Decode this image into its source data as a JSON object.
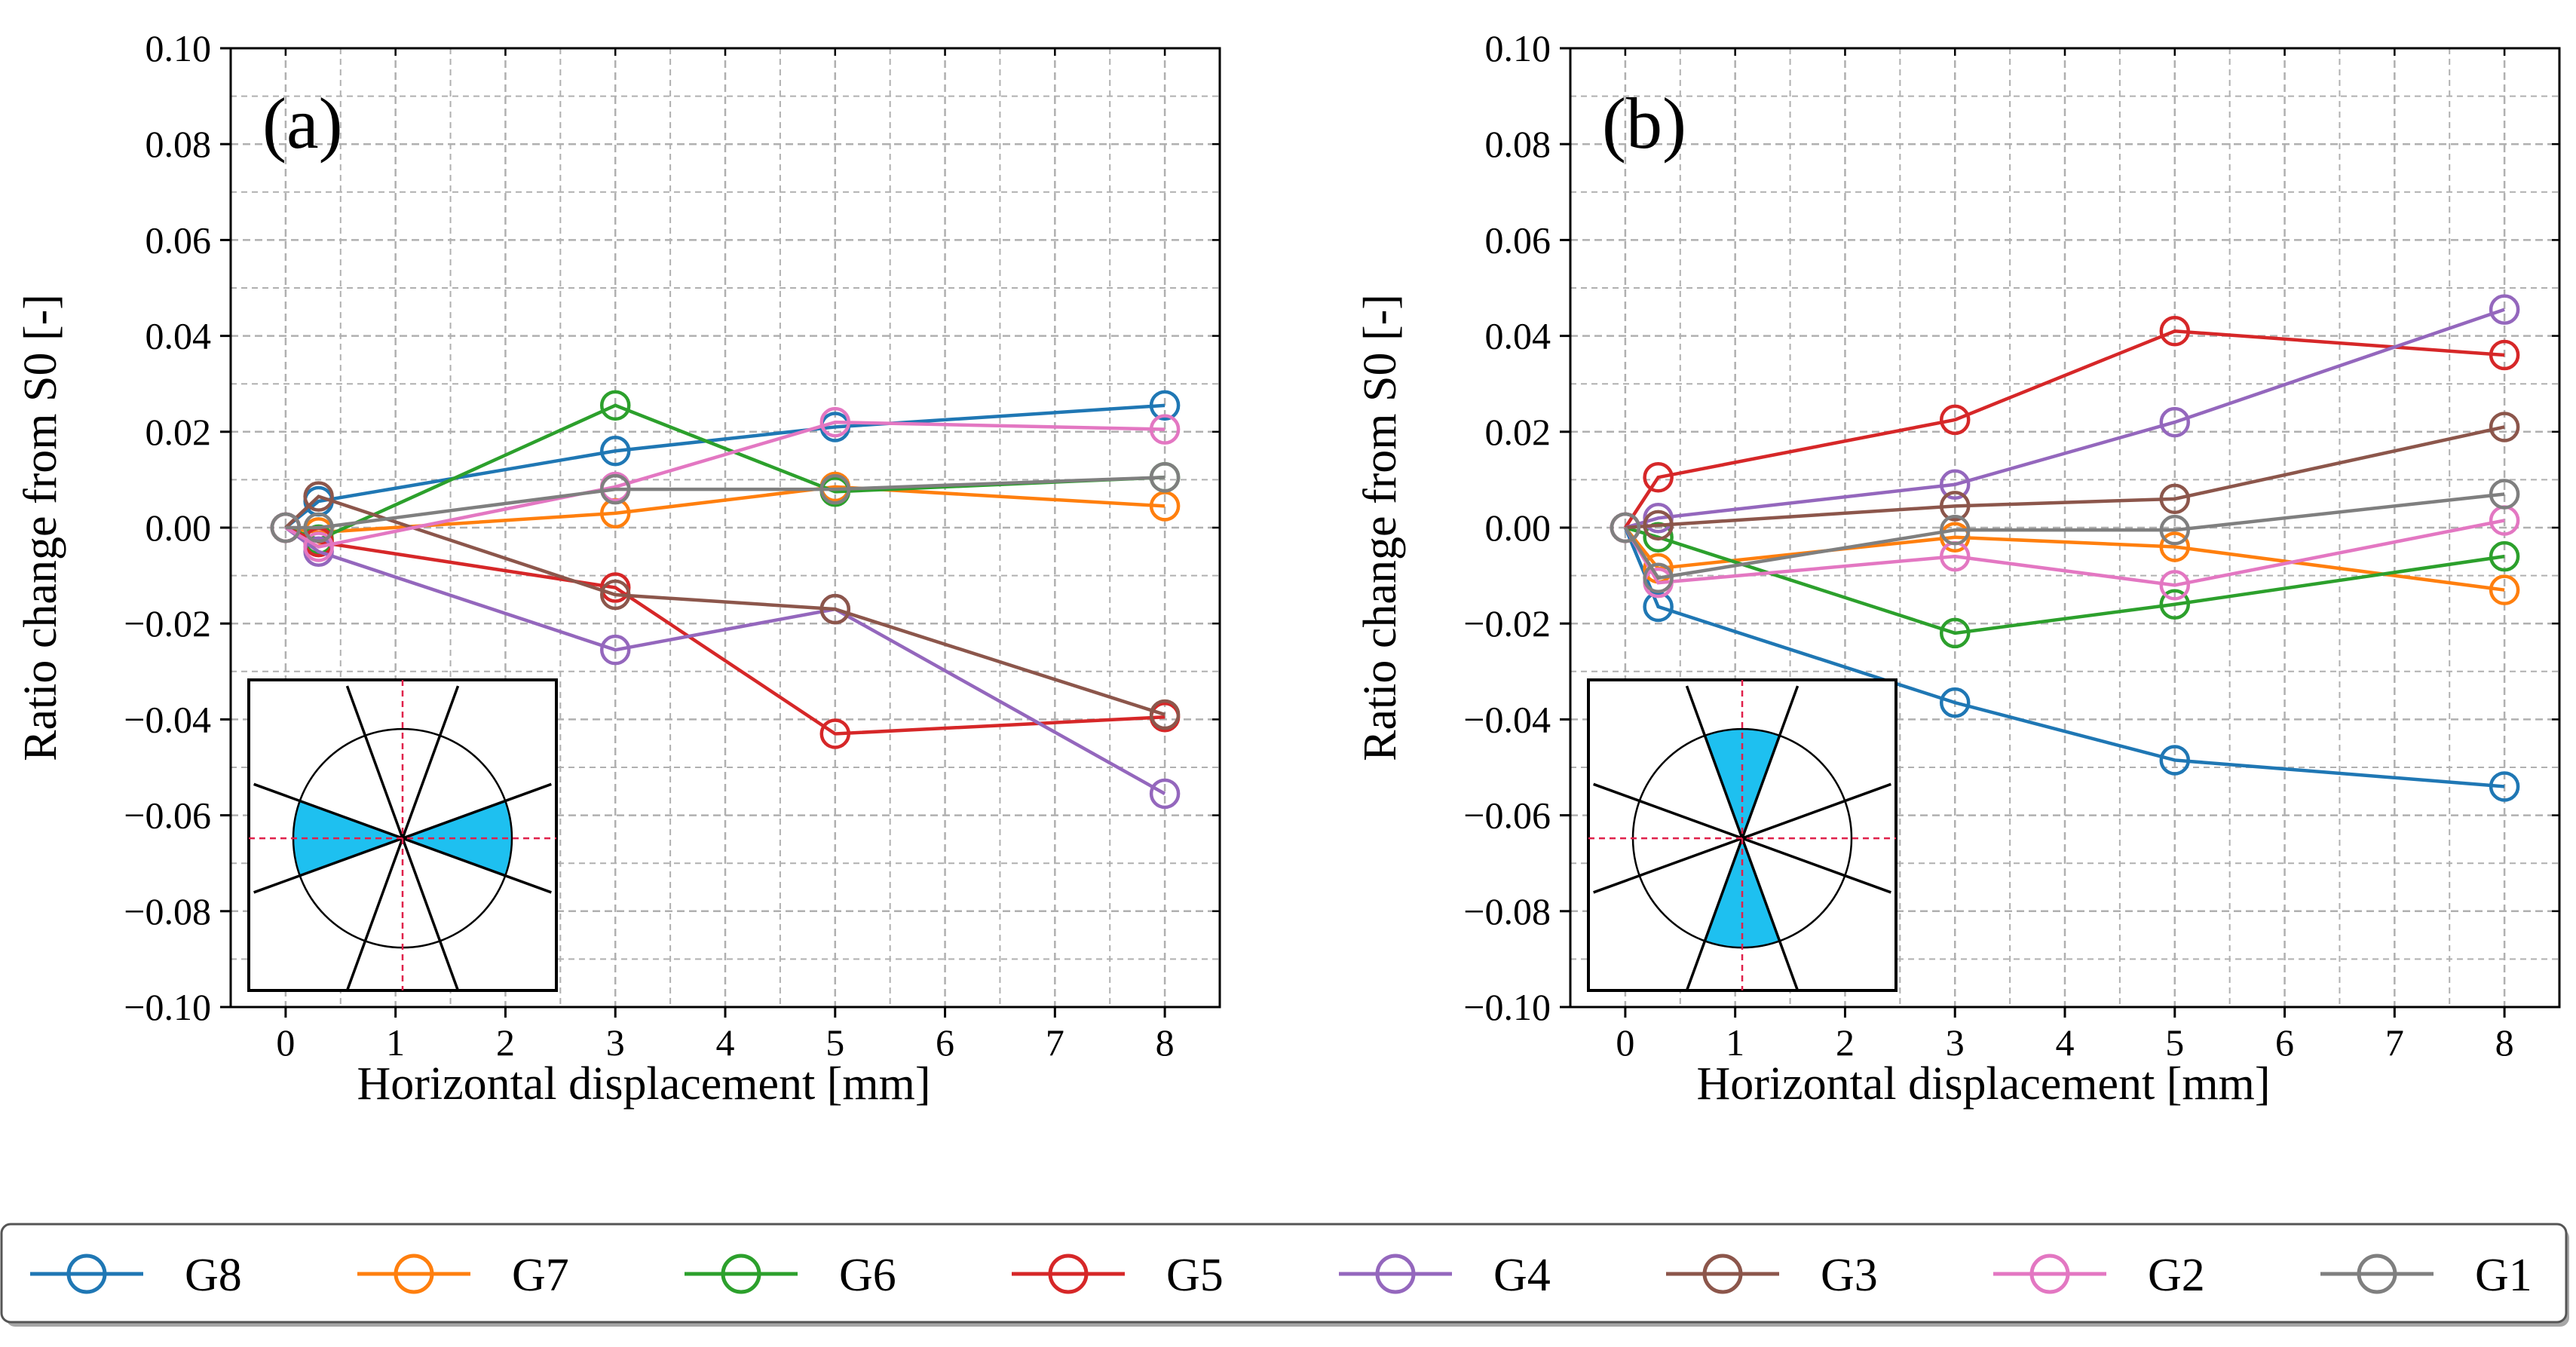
{
  "colors": {
    "G8": "#1f77b4",
    "G7": "#ff7f0e",
    "G6": "#2ca02c",
    "G5": "#d62728",
    "G4": "#9467bd",
    "G3": "#8c564b",
    "G2": "#e377c2",
    "G1": "#7f7f7f",
    "sector_fill": "#1ec0f0",
    "crosshair": "#e0204a",
    "grid": "#b0b0b0"
  },
  "legend": {
    "entries": [
      "G8",
      "G7",
      "G6",
      "G5",
      "G4",
      "G3",
      "G2",
      "G1"
    ]
  },
  "chart_data": [
    {
      "type": "line",
      "panel_label": "(a)",
      "xlabel": "Horizontal displacement [mm]",
      "ylabel": "Ratio change from S0 [-]",
      "xlim": [
        -0.5,
        8.5
      ],
      "ylim": [
        -0.1,
        0.1
      ],
      "xticks": [
        0,
        1,
        2,
        3,
        4,
        5,
        6,
        7,
        8
      ],
      "yticks": [
        -0.1,
        -0.08,
        -0.06,
        -0.04,
        -0.02,
        0.0,
        0.02,
        0.04,
        0.06,
        0.08,
        0.1
      ],
      "ytick_labels": [
        "−0.10",
        "−0.08",
        "−0.06",
        "−0.04",
        "−0.02",
        "0.00",
        "0.02",
        "0.04",
        "0.06",
        "0.08",
        "0.10"
      ],
      "grid": true,
      "x": [
        0,
        0.3,
        3,
        5,
        8
      ],
      "series": [
        {
          "name": "G8",
          "values": [
            0,
            0.0055,
            0.016,
            0.021,
            0.0255
          ]
        },
        {
          "name": "G7",
          "values": [
            0,
            -0.001,
            0.003,
            0.0085,
            0.0045
          ]
        },
        {
          "name": "G6",
          "values": [
            0,
            -0.0025,
            0.0255,
            0.0075,
            0.0105
          ]
        },
        {
          "name": "G5",
          "values": [
            0,
            -0.003,
            -0.0125,
            -0.043,
            -0.0395
          ]
        },
        {
          "name": "G4",
          "values": [
            0,
            -0.005,
            -0.0255,
            -0.017,
            -0.0555
          ]
        },
        {
          "name": "G3",
          "values": [
            0,
            0.0065,
            -0.014,
            -0.017,
            -0.039
          ]
        },
        {
          "name": "G2",
          "values": [
            0,
            -0.004,
            0.0085,
            0.022,
            0.0205
          ]
        },
        {
          "name": "G1",
          "values": [
            0,
            0.0,
            0.008,
            0.008,
            0.0105
          ]
        }
      ],
      "inset": {
        "highlighted_sectors": "left-right"
      }
    },
    {
      "type": "line",
      "panel_label": "(b)",
      "xlabel": "Horizontal displacement [mm]",
      "ylabel": "Ratio change from S0 [-]",
      "xlim": [
        -0.5,
        8.5
      ],
      "ylim": [
        -0.1,
        0.1
      ],
      "xticks": [
        0,
        1,
        2,
        3,
        4,
        5,
        6,
        7,
        8
      ],
      "yticks": [
        -0.1,
        -0.08,
        -0.06,
        -0.04,
        -0.02,
        0.0,
        0.02,
        0.04,
        0.06,
        0.08,
        0.1
      ],
      "ytick_labels": [
        "−0.10",
        "−0.08",
        "−0.06",
        "−0.04",
        "−0.02",
        "0.00",
        "0.02",
        "0.04",
        "0.06",
        "0.08",
        "0.10"
      ],
      "grid": true,
      "x": [
        0,
        0.3,
        3,
        5,
        8
      ],
      "series": [
        {
          "name": "G8",
          "values": [
            0,
            -0.0165,
            -0.0365,
            -0.0485,
            -0.054
          ]
        },
        {
          "name": "G7",
          "values": [
            0,
            -0.0085,
            -0.002,
            -0.004,
            -0.013
          ]
        },
        {
          "name": "G6",
          "values": [
            0,
            -0.002,
            -0.022,
            -0.016,
            -0.006
          ]
        },
        {
          "name": "G5",
          "values": [
            0,
            0.0105,
            0.0225,
            0.041,
            0.036
          ]
        },
        {
          "name": "G4",
          "values": [
            0,
            0.002,
            0.009,
            0.022,
            0.0455
          ]
        },
        {
          "name": "G3",
          "values": [
            0,
            0.0005,
            0.0045,
            0.006,
            0.021
          ]
        },
        {
          "name": "G2",
          "values": [
            0,
            -0.0115,
            -0.006,
            -0.012,
            0.0015
          ]
        },
        {
          "name": "G1",
          "values": [
            0,
            -0.0105,
            -0.0005,
            -0.0005,
            0.007
          ]
        }
      ],
      "inset": {
        "highlighted_sectors": "top-bottom"
      }
    }
  ]
}
